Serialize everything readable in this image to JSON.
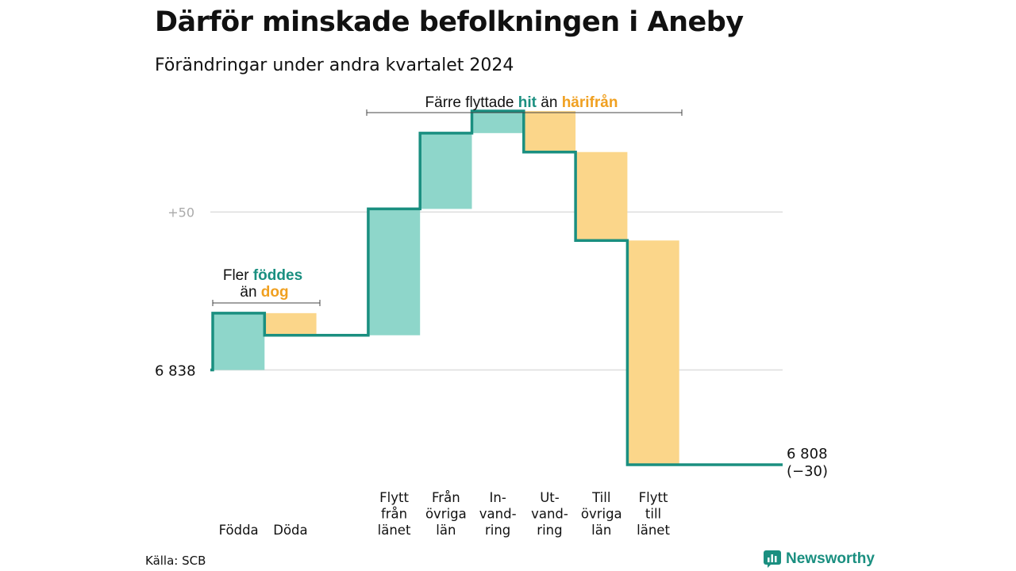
{
  "title": "Därför minskade befolkningen i Aneby",
  "subtitle": "Förändringar under andra kvartalet 2024",
  "source": "Källa: SCB",
  "brand": "Newsworthy",
  "colors": {
    "line": "#1a8f80",
    "increase": "#8ed6ca",
    "decrease": "#fbd68a",
    "accent_green": "#1a8f80",
    "accent_orange": "#f0a020",
    "grid": "#dddddd"
  },
  "annotations": {
    "births": {
      "pre1": "Fler ",
      "hl1": "föddes",
      "pre2": "än ",
      "hl2": "dog"
    },
    "migration": {
      "pre1": "Färre flyttade ",
      "hl1": "hit",
      "mid": " än ",
      "hl2": "härifrån"
    }
  },
  "chart_data": {
    "type": "waterfall",
    "start": {
      "value": 6838,
      "label": "6  838"
    },
    "end": {
      "value": 6808,
      "label_line1": "6 808",
      "label_line2": "(−30)"
    },
    "ytick": {
      "value": 6888,
      "label": "+50"
    },
    "ylim": [
      6807,
      6923
    ],
    "steps": [
      {
        "label": [
          "Födda"
        ],
        "delta": 18
      },
      {
        "label": [
          "Döda"
        ],
        "delta": -7
      },
      {
        "label": [],
        "delta": 0
      },
      {
        "label": [
          "Flytt",
          "från",
          "länet"
        ],
        "delta": 40
      },
      {
        "label": [
          "Från",
          "övriga",
          "län"
        ],
        "delta": 24
      },
      {
        "label": [
          "In-",
          "vand-",
          "ring"
        ],
        "delta": 7
      },
      {
        "label": [
          "Ut-",
          "vand-",
          "ring"
        ],
        "delta": -13
      },
      {
        "label": [
          "Till",
          "övriga",
          "län"
        ],
        "delta": -28
      },
      {
        "label": [
          "Flytt",
          "till",
          "länet"
        ],
        "delta": -71
      },
      {
        "label": [],
        "delta": 0
      }
    ]
  }
}
